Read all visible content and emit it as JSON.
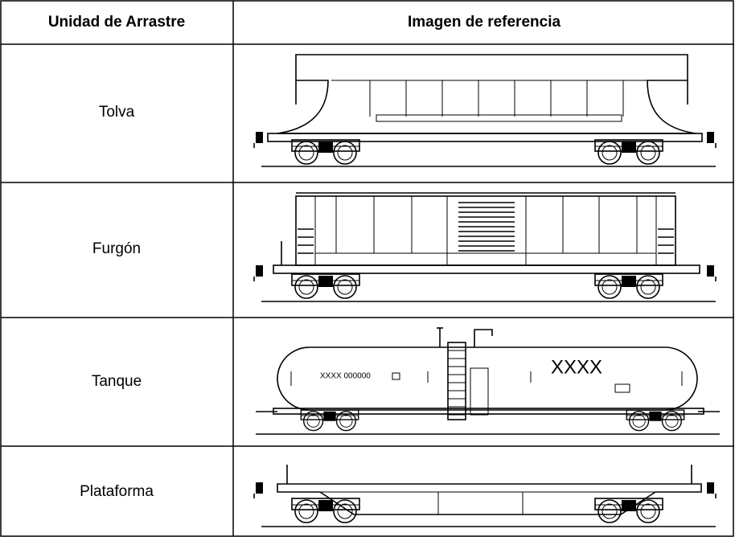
{
  "table": {
    "header": [
      "Unidad de Arrastre",
      "Imagen de referencia"
    ],
    "rows": [
      {
        "name": "Tolva"
      },
      {
        "name": "Furgón"
      },
      {
        "name": "Tanque",
        "markings": [
          "XXXX 000000",
          "XXXX"
        ]
      },
      {
        "name": "Plataforma"
      }
    ]
  }
}
